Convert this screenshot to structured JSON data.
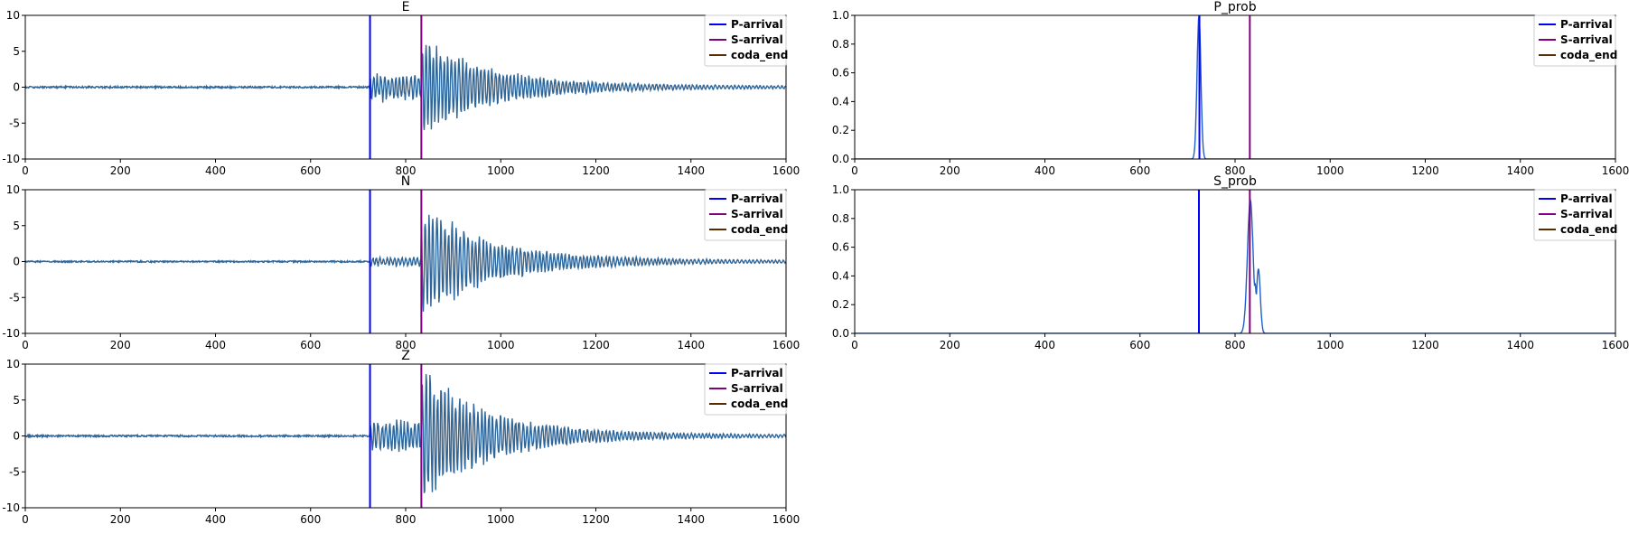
{
  "figure": {
    "colors": {
      "waveform": "#2f6699",
      "probability": "#1f5fc8",
      "p_arrival": "#0000ff",
      "s_arrival": "#800080",
      "coda_end": "#5a2a00",
      "axes": "#000000"
    },
    "legend": {
      "placement": "top-right",
      "entries": [
        {
          "label": "P-arrival",
          "color": "#0000ff"
        },
        {
          "label": "S-arrival",
          "color": "#800080"
        },
        {
          "label": "coda_end",
          "color": "#5a2a00"
        }
      ]
    }
  },
  "chart_data": [
    {
      "type": "line",
      "title": "E",
      "xlabel": "",
      "ylabel": "",
      "xlim": [
        0,
        1600
      ],
      "ylim": [
        -10,
        10
      ],
      "xticks": [
        0,
        200,
        400,
        600,
        800,
        1000,
        1200,
        1400,
        1600
      ],
      "yticks": [
        10,
        5,
        0,
        -5,
        -10
      ],
      "markers": {
        "P-arrival": 725,
        "S-arrival": 833
      },
      "signal": {
        "kind": "waveform",
        "noise": 0.12,
        "p_amp": 2.2,
        "s_amp": 6.5,
        "coda_amp": 1.0,
        "seed": 11
      },
      "grid": false,
      "legend": "top-right"
    },
    {
      "type": "line",
      "title": "P_prob",
      "xlabel": "",
      "ylabel": "",
      "xlim": [
        0,
        1600
      ],
      "ylim": [
        0.0,
        1.0
      ],
      "xticks": [
        0,
        200,
        400,
        600,
        800,
        1000,
        1200,
        1400,
        1600
      ],
      "yticks": [
        1.0,
        0.8,
        0.6,
        0.4,
        0.2,
        0.0
      ],
      "markers": {
        "P-arrival": 725,
        "S-arrival": 831
      },
      "signal": {
        "kind": "probability",
        "peaks": [
          {
            "x": 724,
            "height": 1.0,
            "width": 4
          }
        ]
      },
      "grid": false,
      "legend": "top-right"
    },
    {
      "type": "line",
      "title": "N",
      "xlabel": "",
      "ylabel": "",
      "xlim": [
        0,
        1600
      ],
      "ylim": [
        -10,
        10
      ],
      "xticks": [
        0,
        200,
        400,
        600,
        800,
        1000,
        1200,
        1400,
        1600
      ],
      "yticks": [
        10,
        5,
        0,
        -5,
        -10
      ],
      "markers": {
        "P-arrival": 725,
        "S-arrival": 833
      },
      "signal": {
        "kind": "waveform",
        "noise": 0.1,
        "p_amp": 0.8,
        "s_amp": 7.5,
        "coda_amp": 1.2,
        "seed": 23
      },
      "grid": false,
      "legend": "top-right"
    },
    {
      "type": "line",
      "title": "S_prob",
      "xlabel": "",
      "ylabel": "",
      "xlim": [
        0,
        1600
      ],
      "ylim": [
        0.0,
        1.0
      ],
      "xticks": [
        0,
        200,
        400,
        600,
        800,
        1000,
        1200,
        1400,
        1600
      ],
      "yticks": [
        1.0,
        0.8,
        0.6,
        0.4,
        0.2,
        0.0
      ],
      "markers": {
        "P-arrival": 724,
        "S-arrival": 831
      },
      "signal": {
        "kind": "probability",
        "peaks": [
          {
            "x": 832,
            "height": 0.93,
            "width": 6
          },
          {
            "x": 849,
            "height": 0.45,
            "width": 4
          },
          {
            "x": 842,
            "height": 0.35,
            "width": 3
          }
        ]
      },
      "grid": false,
      "legend": "top-right"
    },
    {
      "type": "line",
      "title": "Z",
      "xlabel": "",
      "ylabel": "",
      "xlim": [
        0,
        1600
      ],
      "ylim": [
        -10,
        10
      ],
      "xticks": [
        0,
        200,
        400,
        600,
        800,
        1000,
        1200,
        1400,
        1600
      ],
      "yticks": [
        10,
        5,
        0,
        -5,
        -10
      ],
      "markers": {
        "P-arrival": 725,
        "S-arrival": 833
      },
      "signal": {
        "kind": "waveform",
        "noise": 0.12,
        "p_amp": 2.8,
        "s_amp": 9.0,
        "coda_amp": 1.1,
        "seed": 37
      },
      "grid": false,
      "legend": "top-right"
    }
  ]
}
